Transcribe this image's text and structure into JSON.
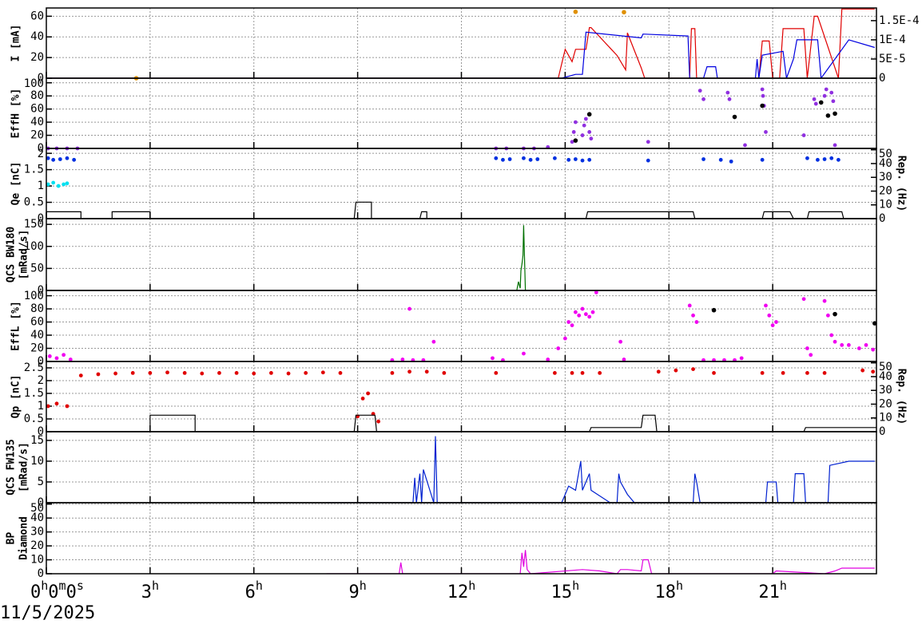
{
  "x_axis": {
    "xlim": [
      0,
      24
    ],
    "xticks": [
      {
        "value": 0,
        "label": "0h0m0s"
      },
      {
        "value": 3,
        "label": "3h"
      },
      {
        "value": 6,
        "label": "6h"
      },
      {
        "value": 9,
        "label": "9h"
      },
      {
        "value": 12,
        "label": "12h"
      },
      {
        "value": 15,
        "label": "15h"
      },
      {
        "value": 18,
        "label": "18h"
      },
      {
        "value": 21,
        "label": "21h"
      }
    ]
  },
  "date": "11/5/2025",
  "chart_data": [
    {
      "type": "line",
      "ylabel": [
        "I [mA]"
      ],
      "ylim": [
        0,
        68
      ],
      "yticks": [
        0,
        20,
        40,
        60
      ],
      "y2lim": [
        0,
        0.000183
      ],
      "y2ticks": [
        0,
        {
          "value": 5e-05,
          "label": "5E-5"
        },
        {
          "value": 0.0001,
          "label": "1E-4"
        },
        {
          "value": 0.00015,
          "label": "1.5E-4"
        }
      ],
      "grid": true,
      "series": [
        {
          "mode": "lines",
          "color": "#e00000",
          "x": [
            0,
            14.8,
            15.0,
            15.2,
            15.3,
            15.6,
            15.7,
            15.75,
            16.5,
            16.75,
            16.8,
            17.2,
            17.3,
            18.6,
            18.65,
            18.75,
            18.8,
            20.6,
            20.7,
            20.9,
            21.0,
            21.2,
            21.3,
            21.9,
            22.0,
            22.2,
            22.3,
            22.9,
            23.0,
            23.95
          ],
          "values": [
            0,
            0,
            28,
            16,
            28,
            28,
            49,
            49,
            22,
            8,
            44,
            10,
            0,
            0,
            48,
            48,
            0,
            0,
            36,
            36,
            0,
            0,
            48,
            48,
            0,
            60,
            60,
            0,
            67,
            67
          ]
        },
        {
          "mode": "lines",
          "color": "#0000e0",
          "axis": "y2",
          "x": [
            0,
            14.9,
            15.3,
            15.5,
            15.6,
            17.2,
            17.25,
            18.55,
            18.6,
            19.0,
            19.1,
            19.35,
            19.4,
            20.5,
            20.55,
            20.6,
            20.7,
            21.3,
            21.4,
            21.6,
            21.7,
            22.3,
            22.4,
            23.2,
            23.95
          ],
          "values": [
            0,
            0,
            1e-05,
            1e-05,
            0.00012,
            0.000105,
            0.000115,
            0.00011,
            0,
            0,
            3e-05,
            3e-05,
            0,
            0,
            5e-05,
            0,
            6e-05,
            7e-05,
            0,
            5e-05,
            0.0001,
            0.0001,
            0,
            0.0001,
            8e-05
          ]
        },
        {
          "mode": "markers",
          "color": "#e09000",
          "axis": "y2",
          "x": [
            2.6,
            15.3,
            16.7
          ],
          "values": [
            0,
            0.000173,
            0.000172
          ]
        }
      ]
    },
    {
      "type": "line",
      "ylabel": [
        "EffH [%]"
      ],
      "ylim": [
        0,
        107
      ],
      "yticks": [
        0,
        20,
        40,
        60,
        80,
        100
      ],
      "grid": true,
      "series": [
        {
          "mode": "markers",
          "color": "#9030e0",
          "x": [
            0.05,
            0.3,
            0.6,
            0.9,
            13.0,
            13.3,
            13.8,
            14.1,
            14.5,
            15.2,
            15.25,
            15.3,
            15.5,
            15.55,
            15.6,
            15.7,
            15.75,
            17.4,
            18.9,
            19.0,
            19.7,
            19.75,
            20.2,
            20.7,
            20.72,
            20.75,
            20.8,
            21.9,
            22.2,
            22.25,
            22.5,
            22.55,
            22.7,
            22.75,
            22.8
          ],
          "values": [
            0,
            0,
            0,
            0,
            0,
            0,
            0,
            0,
            2,
            10,
            25,
            40,
            20,
            35,
            45,
            25,
            15,
            10,
            88,
            75,
            85,
            75,
            5,
            90,
            80,
            65,
            25,
            20,
            75,
            68,
            80,
            90,
            85,
            72,
            5
          ]
        },
        {
          "mode": "markers",
          "color": "#000000",
          "x": [
            15.3,
            15.7,
            19.9,
            20.7,
            22.4,
            22.6,
            22.8
          ],
          "values": [
            12,
            52,
            48,
            65,
            70,
            50,
            53
          ]
        }
      ]
    },
    {
      "type": "line",
      "ylabel": [
        "Qe [nC]"
      ],
      "y2label": [
        "Rep. (Hz)"
      ],
      "ylim": [
        0,
        2.15
      ],
      "yticks": [
        0,
        0.5,
        1,
        1.5,
        2
      ],
      "y2lim": [
        0,
        51
      ],
      "y2ticks": [
        0,
        10,
        20,
        30,
        40,
        50
      ],
      "grid": true,
      "series": [
        {
          "mode": "markers",
          "color": "#0030e0",
          "x": [
            0.05,
            0.2,
            0.4,
            0.6,
            0.8,
            13.0,
            13.2,
            13.4,
            13.8,
            14.0,
            14.2,
            14.7,
            15.1,
            15.3,
            15.5,
            15.7,
            17.4,
            19.0,
            19.5,
            19.8,
            20.7,
            22.0,
            22.3,
            22.5,
            22.7,
            22.9
          ],
          "values": [
            1.85,
            1.8,
            1.82,
            1.85,
            1.8,
            1.85,
            1.8,
            1.82,
            1.85,
            1.8,
            1.82,
            1.85,
            1.8,
            1.82,
            1.78,
            1.8,
            1.78,
            1.82,
            1.8,
            1.75,
            1.8,
            1.85,
            1.8,
            1.82,
            1.85,
            1.8
          ]
        },
        {
          "mode": "markers",
          "color": "#00e0f0",
          "x": [
            0.05,
            0.2,
            0.35,
            0.5,
            0.6
          ],
          "values": [
            1.05,
            1.1,
            1.0,
            1.05,
            1.08
          ]
        },
        {
          "mode": "lines",
          "color": "#000000",
          "axis": "y2",
          "x": [
            0,
            1.0,
            1.0,
            1.9,
            1.9,
            3.0,
            3.0,
            8.9,
            8.95,
            9.4,
            9.4,
            10.8,
            10.85,
            11.0,
            11.0,
            15.6,
            15.65,
            17.6,
            17.65,
            18.7,
            18.75,
            20.7,
            20.75,
            21.5,
            21.6,
            22.0,
            22.05,
            23.0,
            23.05,
            24
          ],
          "values": [
            5,
            5,
            0,
            0,
            5,
            5,
            0,
            0,
            12,
            12,
            0,
            0,
            5,
            5,
            0,
            0,
            5,
            5,
            5,
            5,
            0,
            0,
            5,
            5,
            0,
            0,
            5,
            5,
            0,
            0
          ]
        }
      ]
    },
    {
      "type": "line",
      "ylabel": [
        "QCS BW180",
        "[mRad/s]"
      ],
      "ylim": [
        0,
        163
      ],
      "yticks": [
        0,
        50,
        100,
        150
      ],
      "grid": true,
      "series": [
        {
          "mode": "lines",
          "color": "#007000",
          "x": [
            13.6,
            13.65,
            13.7,
            13.72,
            13.75,
            13.78,
            13.8,
            13.85,
            14.5,
            15.5
          ],
          "values": [
            0,
            20,
            5,
            45,
            60,
            80,
            148,
            0,
            0,
            0
          ]
        }
      ]
    },
    {
      "type": "line",
      "ylabel": [
        "EffL [%]"
      ],
      "ylim": [
        0,
        108
      ],
      "yticks": [
        0,
        20,
        40,
        60,
        80,
        100
      ],
      "grid": true,
      "series": [
        {
          "mode": "markers",
          "color": "#f000f0",
          "x": [
            0.1,
            0.3,
            0.5,
            0.7,
            10.0,
            10.3,
            10.6,
            10.9,
            10.5,
            11.2,
            12.9,
            13.2,
            13.8,
            14.5,
            14.8,
            15.0,
            15.1,
            15.2,
            15.3,
            15.4,
            15.5,
            15.6,
            15.7,
            15.8,
            15.9,
            16.6,
            16.7,
            18.6,
            18.7,
            18.8,
            19.0,
            19.3,
            19.6,
            19.9,
            20.1,
            20.8,
            20.9,
            21.0,
            21.1,
            21.9,
            22.0,
            22.1,
            22.5,
            22.6,
            22.7,
            22.8,
            23.0,
            23.2,
            23.5,
            23.7,
            23.9
          ],
          "values": [
            8,
            5,
            10,
            3,
            2,
            3,
            2,
            2,
            80,
            30,
            5,
            2,
            12,
            3,
            20,
            35,
            60,
            55,
            75,
            70,
            80,
            72,
            68,
            75,
            105,
            30,
            3,
            85,
            70,
            60,
            2,
            2,
            2,
            2,
            5,
            85,
            70,
            55,
            60,
            95,
            20,
            10,
            92,
            70,
            40,
            30,
            25,
            25,
            20,
            25,
            18
          ]
        },
        {
          "mode": "markers",
          "color": "#000000",
          "x": [
            19.3,
            22.8,
            23.95
          ],
          "values": [
            78,
            72,
            58
          ]
        }
      ]
    },
    {
      "type": "line",
      "ylabel": [
        "Qp [nC]"
      ],
      "y2label": [
        "Rep. (Hz)"
      ],
      "ylim": [
        0,
        2.75
      ],
      "yticks": [
        0,
        0.5,
        1,
        1.5,
        2,
        2.5
      ],
      "y2lim": [
        0,
        51
      ],
      "y2ticks": [
        0,
        10,
        20,
        30,
        40,
        50
      ],
      "grid": true,
      "series": [
        {
          "mode": "markers",
          "color": "#e00000",
          "x": [
            0.05,
            0.3,
            0.6,
            1.0,
            1.5,
            2.0,
            2.5,
            3.0,
            3.5,
            4.0,
            4.5,
            5.0,
            5.5,
            6.0,
            6.5,
            7.0,
            7.5,
            8.0,
            8.5,
            9.0,
            9.15,
            9.3,
            9.45,
            9.6,
            10.0,
            10.5,
            11.0,
            11.5,
            13.0,
            14.7,
            15.2,
            15.5,
            16.0,
            17.7,
            18.2,
            18.7,
            19.3,
            20.7,
            21.3,
            22.0,
            22.5,
            23.6,
            23.9
          ],
          "values": [
            1.0,
            1.1,
            1.0,
            2.2,
            2.25,
            2.28,
            2.3,
            2.3,
            2.32,
            2.3,
            2.28,
            2.3,
            2.3,
            2.28,
            2.3,
            2.28,
            2.3,
            2.32,
            2.3,
            0.6,
            1.3,
            1.5,
            0.7,
            0.4,
            2.3,
            2.35,
            2.35,
            2.3,
            2.3,
            2.3,
            2.3,
            2.3,
            2.3,
            2.35,
            2.4,
            2.45,
            2.3,
            2.3,
            2.3,
            2.3,
            2.3,
            2.4,
            2.35
          ]
        },
        {
          "mode": "lines",
          "color": "#000000",
          "axis": "y2",
          "x": [
            0,
            3,
            3,
            4.3,
            4.3,
            8.9,
            8.95,
            9.5,
            9.55,
            15.7,
            15.75,
            17.2,
            17.25,
            17.6,
            17.65,
            21.9,
            21.95,
            24
          ],
          "values": [
            0,
            0,
            12,
            12,
            0,
            0,
            12,
            12,
            0,
            0,
            3,
            3,
            12,
            12,
            0,
            0,
            3,
            3
          ]
        }
      ]
    },
    {
      "type": "line",
      "ylabel": [
        "QCS FW135",
        "[mRad/s]"
      ],
      "ylim": [
        0,
        17.1
      ],
      "yticks": [
        0,
        5,
        10,
        15
      ],
      "grid": true,
      "series": [
        {
          "mode": "lines",
          "color": "#0020d0",
          "x": [
            8.1,
            10.6,
            10.65,
            10.7,
            10.8,
            10.85,
            10.9,
            11.2,
            11.25,
            11.3,
            14.9,
            15.0,
            15.1,
            15.3,
            15.45,
            15.5,
            15.7,
            15.75,
            16.3,
            16.5,
            16.55,
            16.6,
            16.8,
            17.0,
            18.7,
            18.75,
            18.8,
            18.9,
            19.0,
            20.8,
            20.85,
            21.1,
            21.15,
            21.6,
            21.65,
            21.9,
            21.95,
            22.6,
            22.65,
            23.2,
            23.95
          ],
          "values": [
            0,
            0,
            6,
            0,
            7,
            0,
            8,
            0,
            16,
            0,
            0,
            2,
            4,
            3,
            10,
            3,
            7,
            3,
            0,
            0,
            7,
            5,
            2,
            0,
            0,
            7,
            5,
            0,
            0,
            0,
            5,
            5,
            0,
            0,
            7,
            7,
            0,
            0,
            9,
            10,
            10
          ]
        }
      ]
    },
    {
      "type": "line",
      "ylabel": [
        "BP",
        "Diamond"
      ],
      "ylim": [
        0,
        51
      ],
      "yticks": [
        0,
        10,
        20,
        30,
        40,
        50
      ],
      "grid": true,
      "series": [
        {
          "mode": "lines",
          "color": "#e000e0",
          "x": [
            8.1,
            10.2,
            10.25,
            10.3,
            13.7,
            13.75,
            13.8,
            13.85,
            13.9,
            14.0,
            15.5,
            16.0,
            16.5,
            16.6,
            16.8,
            17.2,
            17.25,
            17.4,
            17.5,
            19.0,
            21.0,
            21.1,
            22.5,
            22.8,
            23.0,
            23.95
          ],
          "values": [
            0,
            0,
            8,
            0,
            0,
            15,
            5,
            17,
            3,
            0,
            3,
            2,
            0,
            3,
            3,
            2,
            10,
            10,
            0,
            0,
            0,
            2,
            0,
            2,
            4,
            4
          ]
        }
      ]
    }
  ]
}
